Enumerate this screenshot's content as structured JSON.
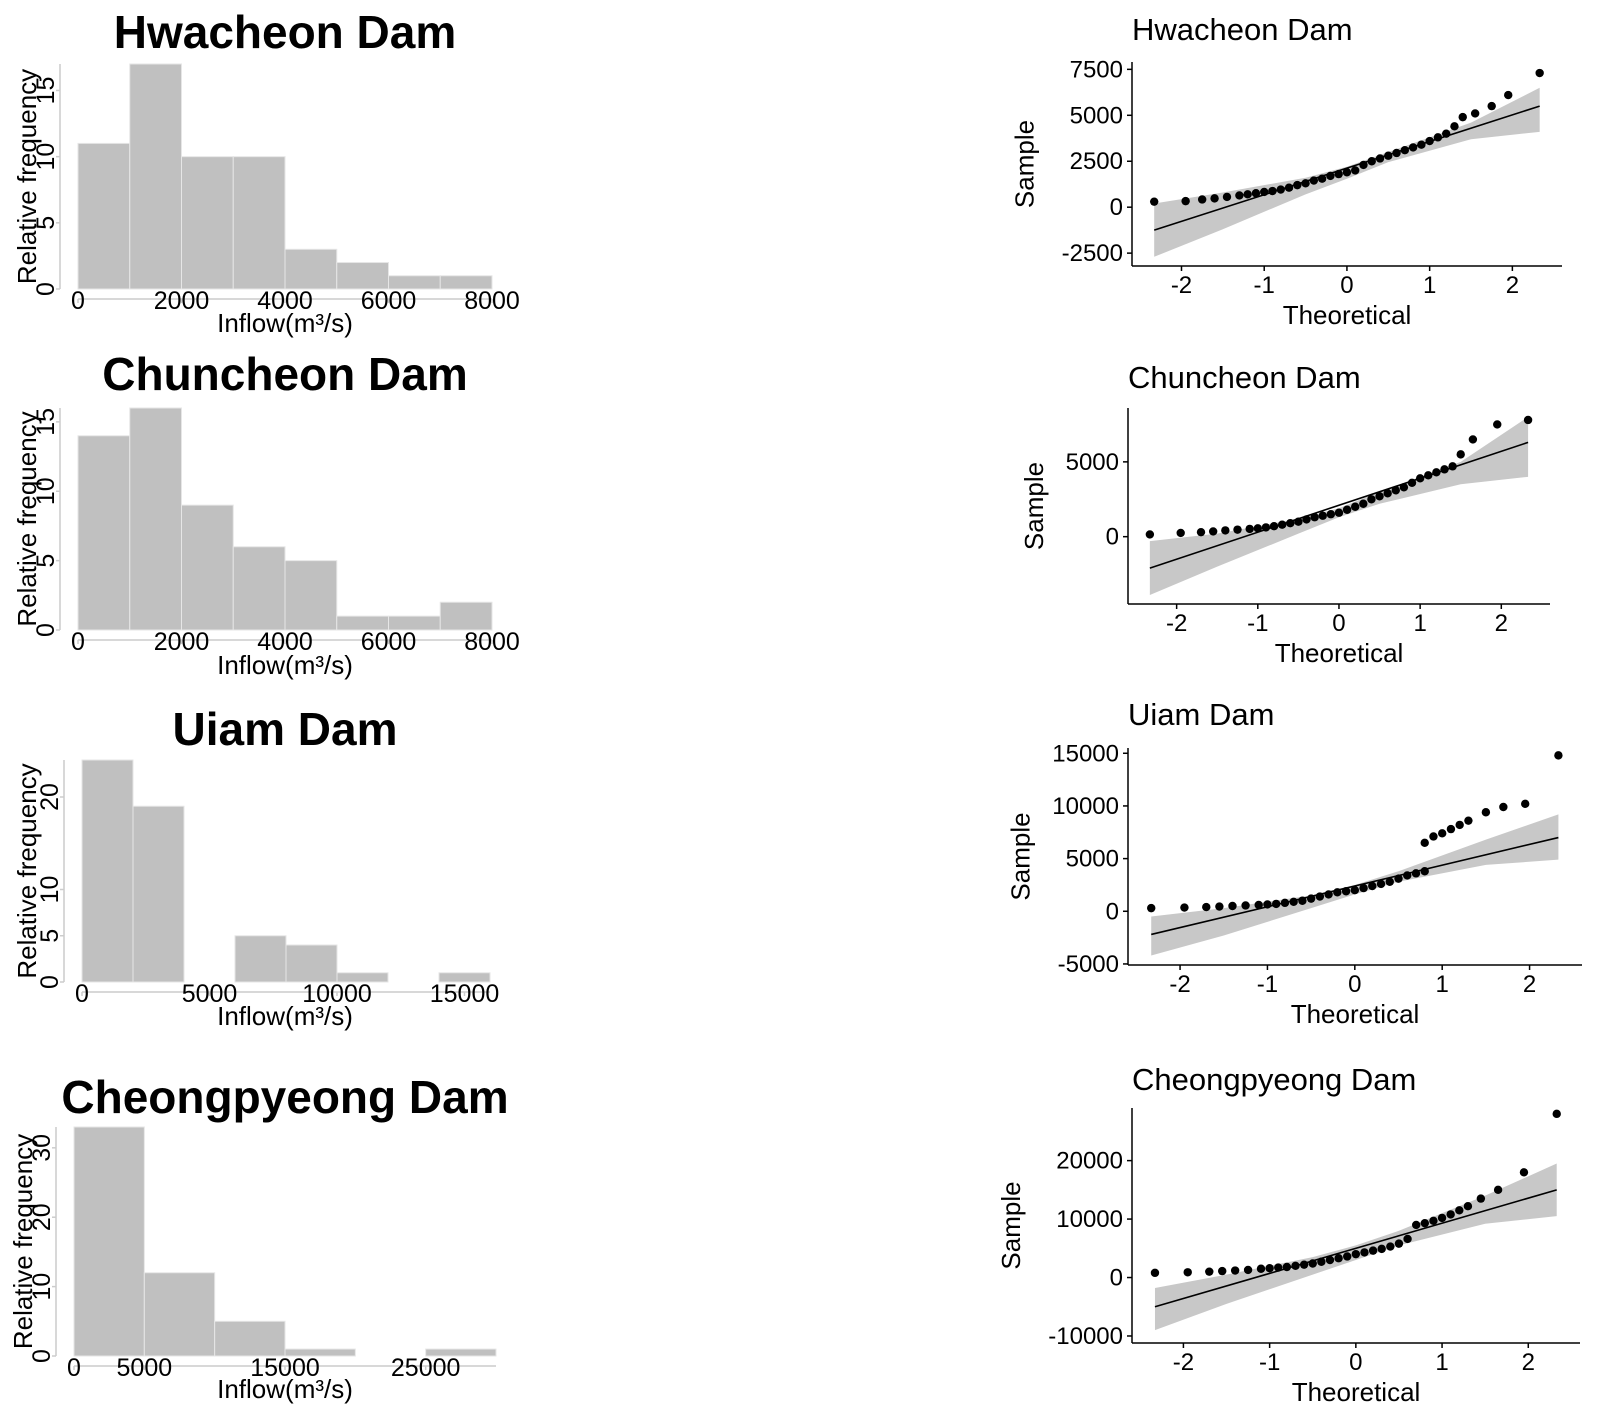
{
  "chart_data": [
    {
      "type": "bar",
      "subtype": "histogram",
      "title": "Hwacheon Dam",
      "xlabel": "Inflow(m³/s)",
      "ylabel": "Relative frequency",
      "bins": [
        [
          0,
          1000
        ],
        [
          1000,
          2000
        ],
        [
          2000,
          3000
        ],
        [
          3000,
          4000
        ],
        [
          4000,
          5000
        ],
        [
          5000,
          6000
        ],
        [
          6000,
          7000
        ],
        [
          7000,
          8000
        ]
      ],
      "values": [
        11,
        17,
        10,
        10,
        3,
        2,
        1,
        1
      ],
      "xlim": [
        0,
        8000
      ],
      "ylim": [
        0,
        17
      ],
      "xticks": [
        {
          "v": 0,
          "label": "0"
        },
        {
          "v": 2000,
          "label": "2000"
        },
        {
          "v": 4000,
          "label": "4000"
        },
        {
          "v": 6000,
          "label": "6000"
        },
        {
          "v": 8000,
          "label": "8000"
        }
      ],
      "yticks": [
        {
          "v": 0,
          "label": "0"
        },
        {
          "v": 5,
          "label": "5"
        },
        {
          "v": 10,
          "label": "10"
        },
        {
          "v": 15,
          "label": "15"
        }
      ],
      "bar_color": "#c0c0c0",
      "grid": false
    },
    {
      "type": "bar",
      "subtype": "histogram",
      "title": "Chuncheon Dam",
      "xlabel": "Inflow(m³/s)",
      "ylabel": "Relative frequency",
      "bins": [
        [
          0,
          1000
        ],
        [
          1000,
          2000
        ],
        [
          2000,
          3000
        ],
        [
          3000,
          4000
        ],
        [
          4000,
          5000
        ],
        [
          5000,
          6000
        ],
        [
          6000,
          7000
        ],
        [
          7000,
          8000
        ]
      ],
      "values": [
        14,
        16,
        9,
        6,
        5,
        1,
        1,
        2
      ],
      "xlim": [
        0,
        8000
      ],
      "ylim": [
        0,
        16
      ],
      "xticks": [
        {
          "v": 0,
          "label": "0"
        },
        {
          "v": 2000,
          "label": "2000"
        },
        {
          "v": 4000,
          "label": "4000"
        },
        {
          "v": 6000,
          "label": "6000"
        },
        {
          "v": 8000,
          "label": "8000"
        }
      ],
      "yticks": [
        {
          "v": 0,
          "label": "0"
        },
        {
          "v": 5,
          "label": "5"
        },
        {
          "v": 10,
          "label": "10"
        },
        {
          "v": 15,
          "label": "15"
        }
      ],
      "bar_color": "#c0c0c0",
      "grid": false
    },
    {
      "type": "bar",
      "subtype": "histogram",
      "title": "Uiam Dam",
      "xlabel": "Inflow(m³/s)",
      "ylabel": "Relative frequency",
      "bins": [
        [
          0,
          2000
        ],
        [
          2000,
          4000
        ],
        [
          4000,
          6000
        ],
        [
          6000,
          8000
        ],
        [
          8000,
          10000
        ],
        [
          10000,
          12000
        ],
        [
          12000,
          14000
        ],
        [
          14000,
          16000
        ]
      ],
      "values": [
        24,
        19,
        0,
        5,
        4,
        1,
        0,
        1
      ],
      "xlim": [
        0,
        16000
      ],
      "ylim": [
        0,
        24
      ],
      "xticks": [
        {
          "v": 0,
          "label": "0"
        },
        {
          "v": 5000,
          "label": "5000"
        },
        {
          "v": 10000,
          "label": "10000"
        },
        {
          "v": 15000,
          "label": "15000"
        }
      ],
      "yticks": [
        {
          "v": 0,
          "label": "0"
        },
        {
          "v": 5,
          "label": "5"
        },
        {
          "v": 10,
          "label": "10"
        },
        {
          "v": 20,
          "label": "20"
        }
      ],
      "bar_color": "#c0c0c0",
      "grid": false
    },
    {
      "type": "bar",
      "subtype": "histogram",
      "title": "Cheongpyeong Dam",
      "xlabel": "Inflow(m³/s)",
      "ylabel": "Relative frequency",
      "bins": [
        [
          0,
          5000
        ],
        [
          5000,
          10000
        ],
        [
          10000,
          15000
        ],
        [
          15000,
          20000
        ],
        [
          20000,
          25000
        ],
        [
          25000,
          30000
        ]
      ],
      "values": [
        33,
        12,
        5,
        1,
        0,
        1
      ],
      "xlim": [
        0,
        30000
      ],
      "ylim": [
        0,
        33
      ],
      "xticks": [
        {
          "v": 0,
          "label": "0"
        },
        {
          "v": 5000,
          "label": "5000"
        },
        {
          "v": 15000,
          "label": "15000"
        },
        {
          "v": 25000,
          "label": "25000"
        }
      ],
      "yticks": [
        {
          "v": 0,
          "label": "0"
        },
        {
          "v": 10,
          "label": "10"
        },
        {
          "v": 20,
          "label": "20"
        },
        {
          "v": 30,
          "label": "30"
        }
      ],
      "bar_color": "#c0c0c0",
      "grid": false
    },
    {
      "type": "scatter",
      "subtype": "qq-plot",
      "title": "Hwacheon Dam",
      "xlabel": "Theoretical",
      "ylabel": "Sample",
      "xlim": [
        -2.55,
        2.6
      ],
      "ylim": [
        -3200,
        7900
      ],
      "xticks": [
        -2,
        -1,
        0,
        1,
        2
      ],
      "yticks": [
        -2500,
        0,
        2500,
        5000,
        7500
      ],
      "ref_line": {
        "x": [
          -2.33,
          2.33
        ],
        "y": [
          -1250,
          5500
        ]
      },
      "band": {
        "x": [
          -2.33,
          -1.5,
          -0.5,
          0,
          0.5,
          1.5,
          2.33
        ],
        "lo": [
          -2700,
          -1200,
          700,
          1550,
          2450,
          3700,
          4100
        ],
        "hi": [
          200,
          800,
          1600,
          2200,
          3000,
          4600,
          6500
        ]
      },
      "points": [
        [
          -2.33,
          300
        ],
        [
          -1.95,
          330
        ],
        [
          -1.75,
          420
        ],
        [
          -1.6,
          480
        ],
        [
          -1.45,
          560
        ],
        [
          -1.3,
          640
        ],
        [
          -1.2,
          700
        ],
        [
          -1.1,
          760
        ],
        [
          -1.0,
          830
        ],
        [
          -0.9,
          880
        ],
        [
          -0.8,
          960
        ],
        [
          -0.7,
          1060
        ],
        [
          -0.6,
          1200
        ],
        [
          -0.5,
          1300
        ],
        [
          -0.4,
          1450
        ],
        [
          -0.3,
          1550
        ],
        [
          -0.2,
          1700
        ],
        [
          -0.1,
          1800
        ],
        [
          0.0,
          1900
        ],
        [
          0.1,
          2000
        ],
        [
          0.2,
          2300
        ],
        [
          0.3,
          2500
        ],
        [
          0.4,
          2650
        ],
        [
          0.5,
          2800
        ],
        [
          0.6,
          2950
        ],
        [
          0.7,
          3100
        ],
        [
          0.8,
          3250
        ],
        [
          0.9,
          3400
        ],
        [
          1.0,
          3600
        ],
        [
          1.1,
          3800
        ],
        [
          1.2,
          4000
        ],
        [
          1.3,
          4400
        ],
        [
          1.4,
          4900
        ],
        [
          1.55,
          5100
        ],
        [
          1.75,
          5500
        ],
        [
          1.95,
          6100
        ],
        [
          2.33,
          7300
        ]
      ],
      "point_color": "#000000",
      "band_color": "#c8c8c8",
      "grid": false
    },
    {
      "type": "scatter",
      "subtype": "qq-plot",
      "title": "Chuncheon Dam",
      "xlabel": "Theoretical",
      "ylabel": "Sample",
      "xlim": [
        -2.55,
        2.6
      ],
      "ylim": [
        -4500,
        8600
      ],
      "xticks": [
        -2,
        -1,
        0,
        1,
        2
      ],
      "yticks": [
        0,
        5000
      ],
      "ref_line": {
        "x": [
          -2.33,
          2.33
        ],
        "y": [
          -2100,
          6300
        ]
      },
      "band": {
        "x": [
          -2.33,
          -1.5,
          -0.5,
          0,
          0.5,
          1.5,
          2.33
        ],
        "lo": [
          -3900,
          -2000,
          200,
          1300,
          2200,
          3500,
          4000
        ],
        "hi": [
          -300,
          200,
          1200,
          1900,
          3000,
          5000,
          8000
        ]
      },
      "points": [
        [
          -2.33,
          150
        ],
        [
          -1.95,
          250
        ],
        [
          -1.7,
          300
        ],
        [
          -1.55,
          350
        ],
        [
          -1.4,
          420
        ],
        [
          -1.25,
          470
        ],
        [
          -1.1,
          520
        ],
        [
          -1.0,
          560
        ],
        [
          -0.9,
          620
        ],
        [
          -0.8,
          700
        ],
        [
          -0.7,
          800
        ],
        [
          -0.6,
          900
        ],
        [
          -0.5,
          1000
        ],
        [
          -0.4,
          1150
        ],
        [
          -0.3,
          1300
        ],
        [
          -0.2,
          1400
        ],
        [
          -0.1,
          1500
        ],
        [
          0.0,
          1600
        ],
        [
          0.1,
          1800
        ],
        [
          0.2,
          2000
        ],
        [
          0.3,
          2200
        ],
        [
          0.4,
          2500
        ],
        [
          0.5,
          2700
        ],
        [
          0.6,
          2900
        ],
        [
          0.7,
          3100
        ],
        [
          0.8,
          3300
        ],
        [
          0.9,
          3600
        ],
        [
          1.0,
          3900
        ],
        [
          1.1,
          4100
        ],
        [
          1.2,
          4300
        ],
        [
          1.3,
          4500
        ],
        [
          1.4,
          4700
        ],
        [
          1.5,
          5500
        ],
        [
          1.65,
          6500
        ],
        [
          1.95,
          7500
        ],
        [
          2.33,
          7800
        ]
      ],
      "point_color": "#000000",
      "band_color": "#c8c8c8",
      "grid": false
    },
    {
      "type": "scatter",
      "subtype": "qq-plot",
      "title": "Uiam Dam",
      "xlabel": "Theoretical",
      "ylabel": "Sample",
      "xlim": [
        -2.55,
        2.6
      ],
      "ylim": [
        -5100,
        15500
      ],
      "xticks": [
        -2,
        -1,
        0,
        1,
        2
      ],
      "yticks": [
        -5000,
        0,
        5000,
        10000,
        15000
      ],
      "ref_line": {
        "x": [
          -2.33,
          2.33
        ],
        "y": [
          -2200,
          7000
        ]
      },
      "band": {
        "x": [
          -2.33,
          -1.5,
          -0.5,
          0,
          0.5,
          1.5,
          2.33
        ],
        "lo": [
          -4200,
          -2300,
          300,
          1600,
          2800,
          4400,
          4900
        ],
        "hi": [
          -500,
          300,
          1500,
          2500,
          3800,
          6800,
          9200
        ]
      },
      "points": [
        [
          -2.33,
          300
        ],
        [
          -1.95,
          350
        ],
        [
          -1.7,
          400
        ],
        [
          -1.55,
          450
        ],
        [
          -1.4,
          500
        ],
        [
          -1.25,
          550
        ],
        [
          -1.1,
          600
        ],
        [
          -1.0,
          650
        ],
        [
          -0.9,
          700
        ],
        [
          -0.8,
          800
        ],
        [
          -0.7,
          900
        ],
        [
          -0.6,
          1000
        ],
        [
          -0.5,
          1200
        ],
        [
          -0.4,
          1400
        ],
        [
          -0.3,
          1600
        ],
        [
          -0.2,
          1800
        ],
        [
          -0.1,
          1900
        ],
        [
          0.0,
          2000
        ],
        [
          0.1,
          2200
        ],
        [
          0.2,
          2400
        ],
        [
          0.3,
          2600
        ],
        [
          0.4,
          2800
        ],
        [
          0.5,
          3100
        ],
        [
          0.6,
          3400
        ],
        [
          0.7,
          3600
        ],
        [
          0.8,
          3800
        ],
        [
          0.8,
          6500
        ],
        [
          0.9,
          7100
        ],
        [
          1.0,
          7400
        ],
        [
          1.1,
          7800
        ],
        [
          1.2,
          8200
        ],
        [
          1.3,
          8600
        ],
        [
          1.5,
          9400
        ],
        [
          1.7,
          9900
        ],
        [
          1.95,
          10200
        ],
        [
          2.33,
          14800
        ]
      ],
      "point_color": "#000000",
      "band_color": "#c8c8c8",
      "grid": false
    },
    {
      "type": "scatter",
      "subtype": "qq-plot",
      "title": "Cheongpyeong Dam",
      "xlabel": "Theoretical",
      "ylabel": "Sample",
      "xlim": [
        -2.55,
        2.6
      ],
      "ylim": [
        -11200,
        29000
      ],
      "xticks": [
        -2,
        -1,
        0,
        1,
        2
      ],
      "yticks": [
        -10000,
        0,
        10000,
        20000
      ],
      "ref_line": {
        "x": [
          -2.33,
          2.33
        ],
        "y": [
          -5000,
          15000
        ]
      },
      "band": {
        "x": [
          -2.33,
          -1.5,
          -0.5,
          0,
          0.5,
          1.5,
          2.33
        ],
        "lo": [
          -9000,
          -4500,
          500,
          3000,
          5500,
          9200,
          10500
        ],
        "hi": [
          -1800,
          500,
          3500,
          5500,
          8000,
          14000,
          19500
        ]
      },
      "points": [
        [
          -2.33,
          800
        ],
        [
          -1.95,
          900
        ],
        [
          -1.7,
          1000
        ],
        [
          -1.55,
          1100
        ],
        [
          -1.4,
          1200
        ],
        [
          -1.25,
          1300
        ],
        [
          -1.1,
          1500
        ],
        [
          -1.0,
          1600
        ],
        [
          -0.9,
          1700
        ],
        [
          -0.8,
          1800
        ],
        [
          -0.7,
          2000
        ],
        [
          -0.6,
          2200
        ],
        [
          -0.5,
          2400
        ],
        [
          -0.4,
          2700
        ],
        [
          -0.3,
          3000
        ],
        [
          -0.2,
          3300
        ],
        [
          -0.1,
          3600
        ],
        [
          0.0,
          4000
        ],
        [
          0.1,
          4300
        ],
        [
          0.2,
          4600
        ],
        [
          0.3,
          4900
        ],
        [
          0.4,
          5300
        ],
        [
          0.5,
          5800
        ],
        [
          0.6,
          6600
        ],
        [
          0.7,
          9000
        ],
        [
          0.8,
          9300
        ],
        [
          0.9,
          9700
        ],
        [
          1.0,
          10200
        ],
        [
          1.1,
          10800
        ],
        [
          1.2,
          11500
        ],
        [
          1.3,
          12200
        ],
        [
          1.45,
          13500
        ],
        [
          1.65,
          15000
        ],
        [
          1.95,
          18000
        ],
        [
          2.33,
          28000
        ]
      ],
      "point_color": "#000000",
      "band_color": "#c8c8c8",
      "grid": false
    }
  ]
}
